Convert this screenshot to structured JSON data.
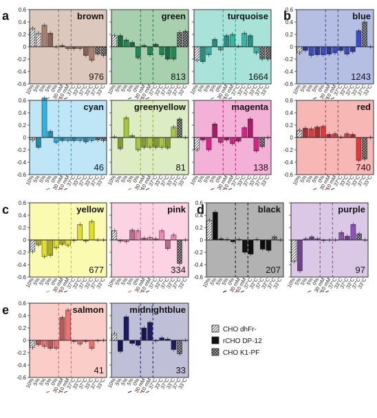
{
  "legend": [
    {
      "label": "CHO dhFr-",
      "pattern": "hatch"
    },
    {
      "label": "rCHO DP-12",
      "pattern": "solid"
    },
    {
      "label": "CHO K1-PF",
      "pattern": "check"
    }
  ],
  "chart_data": [
    {
      "type": "bar",
      "letter": "a",
      "title": "brown",
      "count": "976",
      "color": "#ab7f6c",
      "bg": "#ddc8bd",
      "values": [
        0.3,
        0.22,
        0.35,
        0.22,
        0,
        0.02,
        -0.03,
        -0.03,
        -0.03,
        -0.14,
        -0.22,
        -0.12,
        -0.14
      ],
      "ylim": [
        -0.6,
        0.6
      ]
    },
    {
      "type": "bar",
      "title": "green",
      "count": "813",
      "color": "#1d8c54",
      "bg": "#a8cfae",
      "values": [
        0.18,
        0.18,
        0.11,
        0.07,
        -0.18,
        0.02,
        -0.13,
        0.04,
        -0.13,
        -0.2,
        -0.2,
        0.23,
        0.25
      ],
      "ylim": [
        -0.6,
        0.6
      ]
    },
    {
      "type": "bar",
      "title": "turquoise",
      "count": "1664",
      "color": "#34b5a6",
      "bg": "#a8e2d8",
      "values": [
        -0.22,
        -0.24,
        -0.13,
        0.12,
        -0.05,
        0.18,
        0.2,
        0.01,
        0.22,
        0.18,
        -0.1,
        -0.2,
        -0.2
      ],
      "ylim": [
        -0.6,
        0.6
      ]
    },
    {
      "type": "bar",
      "letter": "b",
      "title": "blue",
      "count": "1243",
      "color": "#3b4cc9",
      "bg": "#b4bfe3",
      "values": [
        -0.1,
        -0.06,
        -0.14,
        -0.13,
        -0.13,
        -0.12,
        -0.1,
        -0.06,
        -0.12,
        -0.08,
        0.26,
        0.4,
        0
      ],
      "ylim": [
        -0.6,
        0.6
      ]
    },
    {
      "type": "bar",
      "title": "cyan",
      "count": "46",
      "color": "#2bb4e3",
      "bg": "#bfe6f7",
      "values": [
        -0.04,
        -0.16,
        0.64,
        0.1,
        -0.08,
        -0.05,
        -0.05,
        -0.05,
        -0.05,
        -0.07,
        -0.05,
        -0.04,
        -0.05
      ],
      "ylim": [
        -0.6,
        0.6
      ]
    },
    {
      "type": "bar",
      "title": "greenyellow",
      "count": "81",
      "color": "#a8c83a",
      "bg": "#dcedc4",
      "values": [
        0.01,
        -0.18,
        0.32,
        0.03,
        -0.2,
        -0.16,
        -0.16,
        -0.16,
        -0.16,
        -0.17,
        0.17,
        0.3,
        0
      ],
      "ylim": [
        -0.6,
        0.6
      ]
    },
    {
      "type": "bar",
      "title": "magenta",
      "count": "138",
      "color": "#e0208a",
      "bg": "#f3b1d8",
      "values": [
        -0.2,
        -0.04,
        -0.2,
        0.22,
        -0.08,
        -0.04,
        -0.1,
        -0.06,
        0.16,
        0.3,
        -0.22,
        -0.15,
        0
      ],
      "ylim": [
        -0.6,
        0.6
      ]
    },
    {
      "type": "bar",
      "title": "red",
      "count": "740",
      "color": "#e03a3a",
      "bg": "#f6b7b5",
      "values": [
        0.12,
        0.15,
        0.14,
        0.17,
        0.18,
        0.05,
        0.06,
        0.01,
        0.06,
        0.05,
        -0.37,
        -0.35,
        0
      ],
      "ylim": [
        -0.6,
        0.6
      ]
    },
    {
      "type": "bar",
      "letter": "c",
      "title": "yellow",
      "count": "677",
      "color": "#e1e025",
      "bg": "#fafab0",
      "values": [
        -0.19,
        -0.08,
        -0.27,
        -0.25,
        -0.13,
        -0.07,
        -0.09,
        -0.01,
        0.25,
        -0.02,
        0.3,
        0,
        0
      ],
      "ylim": [
        -0.6,
        0.6
      ]
    },
    {
      "type": "bar",
      "title": "pink",
      "count": "334",
      "color": "#f08ab2",
      "bg": "#fbd3e3",
      "values": [
        0.15,
        -0.02,
        -0.03,
        0.16,
        0.15,
        0.03,
        0.04,
        0.02,
        0.15,
        -0.14,
        0.08,
        -0.38,
        0
      ],
      "ylim": [
        -0.6,
        0.6
      ]
    },
    {
      "type": "bar",
      "letter": "d",
      "title": "black",
      "count": "207",
      "color": "#111111",
      "bg": "#b2b2b2",
      "values": [
        0.32,
        0.45,
        0.02,
        0.01,
        -0.03,
        0.01,
        -0.2,
        -0.23,
        0.01,
        -0.15,
        -0.17,
        0.05,
        0
      ],
      "ylim": [
        -0.6,
        0.6
      ]
    },
    {
      "type": "bar",
      "title": "purple",
      "count": "97",
      "color": "#8c52b8",
      "bg": "#dbc7e6",
      "values": [
        -0.35,
        -0.5,
        0.02,
        0.05,
        0.02,
        -0.01,
        0.0,
        0.0,
        0.12,
        0.06,
        0.25,
        0.1,
        0
      ],
      "ylim": [
        -0.6,
        0.6
      ]
    },
    {
      "type": "bar",
      "letter": "e",
      "title": "salmon",
      "count": "41",
      "color": "#f07171",
      "bg": "#fbcdc8",
      "values": [
        -0.12,
        -0.07,
        -0.1,
        -0.13,
        -0.13,
        0.37,
        0.49,
        -0.02,
        -0.06,
        -0.02,
        -0.13,
        -0.01,
        0
      ],
      "ylim": [
        -0.6,
        0.6
      ]
    },
    {
      "type": "bar",
      "title": "midnightblue",
      "count": "33",
      "color": "#1b1b66",
      "bg": "#bfbfd8",
      "values": [
        0.11,
        -0.18,
        0.38,
        -0.05,
        -0.08,
        0.2,
        0.29,
        -0.01,
        0.04,
        0.02,
        -0.15,
        -0.22,
        0
      ],
      "ylim": [
        -0.6,
        0.6
      ]
    }
  ],
  "x_labels": [
    "10%",
    "5%",
    "5%",
    "5%",
    "0%",
    "30 mM",
    "10 mM",
    "37°C",
    "33°C",
    "37°C",
    "33°C",
    "37°C",
    "33°C"
  ],
  "y_ticks": [
    "0.6",
    "0.4",
    "0.2",
    "0",
    "-0.2",
    "-0.4",
    "-0.6"
  ]
}
